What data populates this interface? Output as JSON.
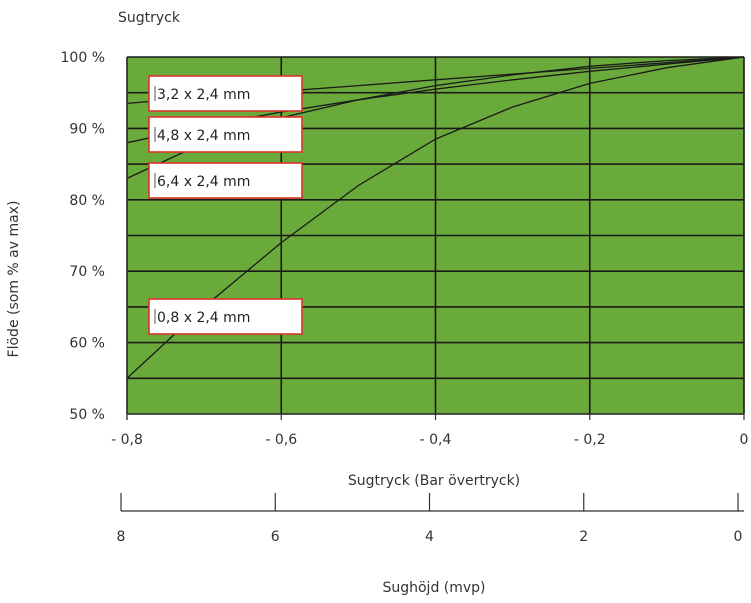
{
  "chart_data": {
    "type": "line",
    "title": "Sugtryck",
    "xlabel": "Sugtryck (Bar övertryck)",
    "ylabel": "Flöde (som % av max)",
    "xlim": [
      -0.8,
      0
    ],
    "ylim": [
      50,
      100
    ],
    "x_ticks": [
      -0.8,
      -0.6,
      -0.4,
      -0.2,
      0
    ],
    "x_tick_labels": [
      "- 0,8",
      "- 0,6",
      "- 0,4",
      "- 0,2",
      "0"
    ],
    "y_ticks": [
      50,
      60,
      70,
      80,
      90,
      100
    ],
    "y_tick_labels": [
      "50 %",
      "60 %",
      "70 %",
      "80 %",
      "90 %",
      "100 %"
    ],
    "grid": true,
    "background_color": "#6aaa3a",
    "line_color": "#1a1a1a",
    "secondary_axis": {
      "label": "Sughöjd (mvp)",
      "ticks": [
        8,
        6,
        4,
        2,
        0
      ],
      "tick_labels": [
        "8",
        "6",
        "4",
        "2",
        "0"
      ]
    },
    "series": [
      {
        "name": "3,2 x 2,4 mm",
        "x": [
          -0.8,
          -0.7,
          -0.6,
          -0.5,
          -0.4,
          -0.3,
          -0.2,
          -0.1,
          0
        ],
        "y": [
          93.5,
          94.4,
          95.2,
          96.0,
          96.8,
          97.6,
          98.4,
          99.2,
          100
        ]
      },
      {
        "name": "4,8 x 2,4 mm",
        "x": [
          -0.8,
          -0.7,
          -0.6,
          -0.5,
          -0.4,
          -0.3,
          -0.2,
          -0.1,
          0
        ],
        "y": [
          88.0,
          90.3,
          92.3,
          94.0,
          95.5,
          96.8,
          98.0,
          99.0,
          100
        ]
      },
      {
        "name": "6,4 x 2,4 mm",
        "x": [
          -0.8,
          -0.7,
          -0.6,
          -0.5,
          -0.4,
          -0.3,
          -0.2,
          -0.1,
          0
        ],
        "y": [
          83.0,
          88.0,
          91.5,
          94.0,
          96.0,
          97.5,
          98.7,
          99.5,
          100
        ]
      },
      {
        "name": "0,8 x 2,4 mm",
        "x": [
          -0.8,
          -0.7,
          -0.6,
          -0.5,
          -0.4,
          -0.3,
          -0.2,
          -0.1,
          0
        ],
        "y": [
          55.0,
          65.0,
          74.0,
          82.0,
          88.5,
          93.0,
          96.3,
          98.5,
          100
        ]
      }
    ],
    "annotations": [
      {
        "series": 0,
        "text": "3,2 x 2,4 mm"
      },
      {
        "series": 1,
        "text": "4,8 x 2,4 mm"
      },
      {
        "series": 2,
        "text": "6,4 x 2,4 mm"
      },
      {
        "series": 3,
        "text": "0,8 x 2,4 mm"
      }
    ]
  }
}
